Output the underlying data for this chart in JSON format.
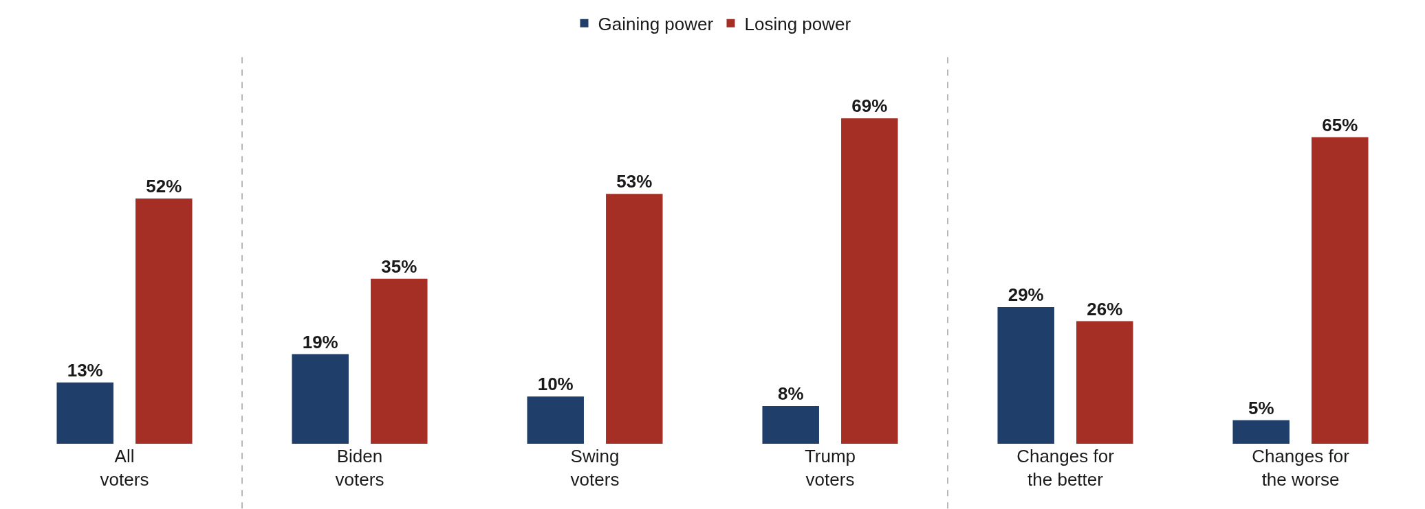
{
  "chart_data": {
    "type": "bar",
    "categories": [
      "All\nvoters",
      "Biden\nvoters",
      "Swing\nvoters",
      "Trump\nvoters",
      "Changes for\nthe better",
      "Changes for\nthe worse"
    ],
    "series": [
      {
        "name": "Gaining power",
        "color": "#1f3e6a",
        "values": [
          13,
          19,
          10,
          8,
          29,
          5
        ],
        "value_labels": [
          "13%",
          "19%",
          "10%",
          "8%",
          "29%",
          "5%"
        ]
      },
      {
        "name": "Losing power",
        "color": "#a52f25",
        "values": [
          52,
          35,
          53,
          69,
          26,
          65
        ],
        "value_labels": [
          "52%",
          "35%",
          "53%",
          "69%",
          "26%",
          "65%"
        ]
      }
    ],
    "legend": "top"
  }
}
